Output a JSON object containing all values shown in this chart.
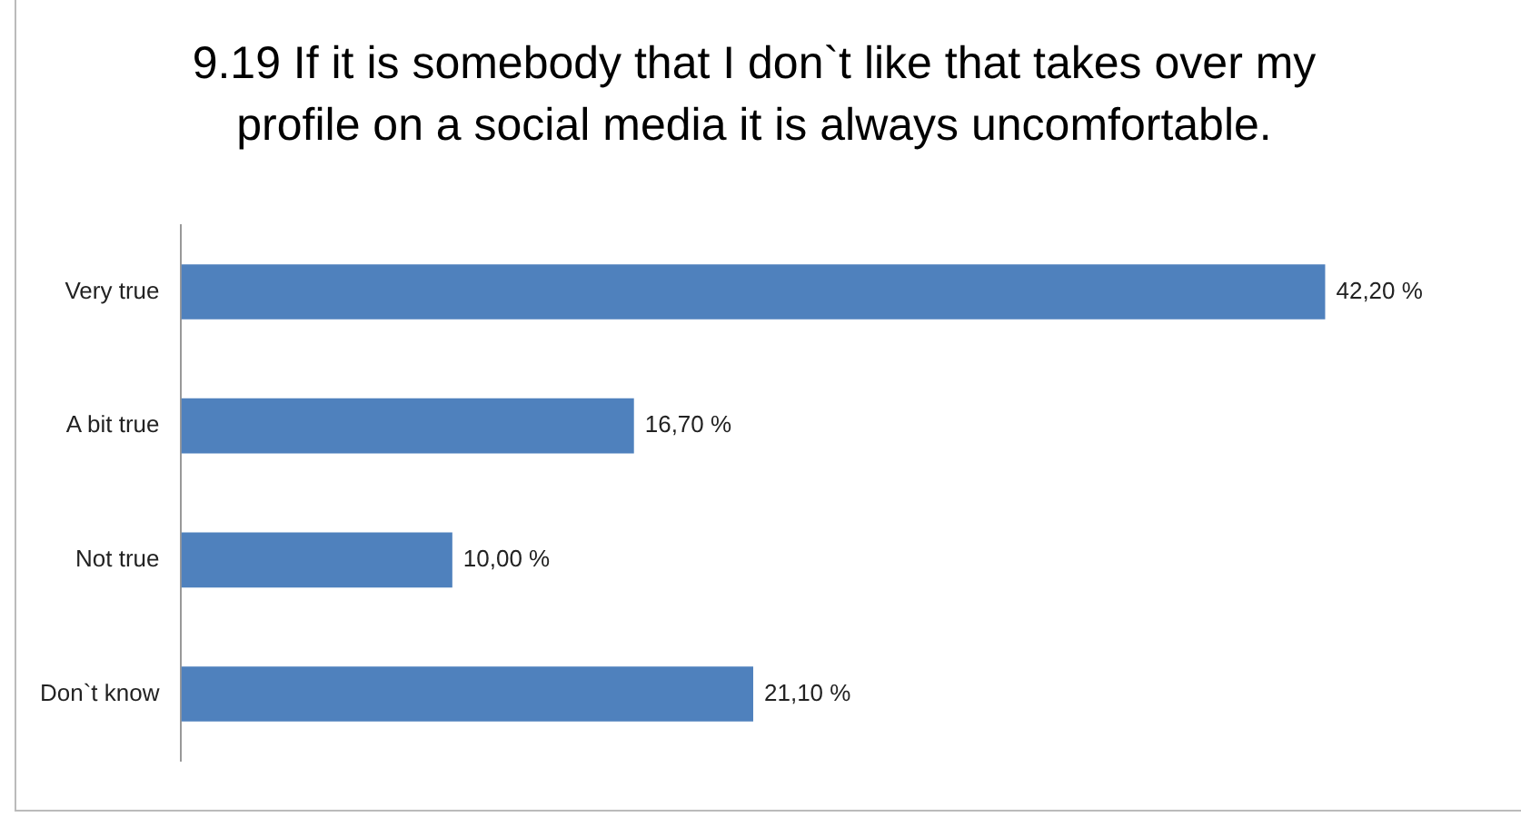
{
  "chart_data": {
    "type": "bar",
    "orientation": "horizontal",
    "title": "9.19 If it is somebody that I don`t like that takes over my profile on a social media it is always uncomfortable.",
    "categories": [
      "Very true",
      "A bit true",
      "Not true",
      "Don`t know"
    ],
    "values": [
      42.2,
      16.7,
      10.0,
      21.1
    ],
    "value_labels": [
      "42,20 %",
      "16,70 %",
      "10,00 %",
      "21,10 %"
    ],
    "color": "#4f81bd",
    "tick_labels": "y",
    "legend": false
  }
}
